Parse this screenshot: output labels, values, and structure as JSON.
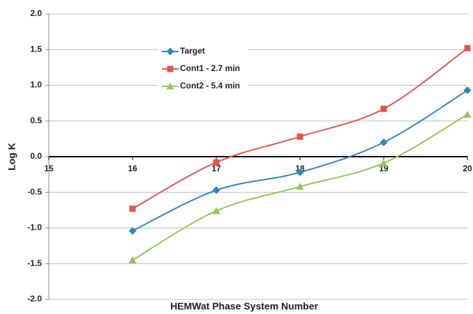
{
  "chart_data": {
    "type": "line",
    "x_label": "HEMWat Phase System Number",
    "y_label": "Log K",
    "x": [
      16,
      17,
      18,
      19,
      20
    ],
    "series": [
      {
        "name": "Target",
        "color": "#2e86c1",
        "marker": "diamond",
        "values": [
          -1.04,
          -0.47,
          -0.22,
          0.2,
          0.93
        ]
      },
      {
        "name": "Cont1 - 2.7 min",
        "color": "#e8534f",
        "marker": "square",
        "values": [
          -0.73,
          -0.08,
          0.28,
          0.67,
          1.52
        ]
      },
      {
        "name": "Cont2 - 5.4 min",
        "color": "#92c85a",
        "marker": "triangle",
        "values": [
          -1.45,
          -0.76,
          -0.42,
          -0.09,
          0.59
        ]
      }
    ],
    "xlim": [
      15,
      20
    ],
    "xticks": [
      15,
      16,
      17,
      18,
      19,
      20
    ],
    "ylim": [
      -2,
      2
    ],
    "yticks": [
      {
        "value": -2,
        "label": "-2.0"
      },
      -1.5,
      {
        "value": -1,
        "label": "-1.0"
      },
      -0.5,
      {
        "value": 0,
        "label": "0.0"
      },
      0.5,
      {
        "value": 1,
        "label": "1.0"
      },
      1.5,
      {
        "value": 2,
        "label": "2.0"
      }
    ],
    "grid": true,
    "smooth": true
  }
}
